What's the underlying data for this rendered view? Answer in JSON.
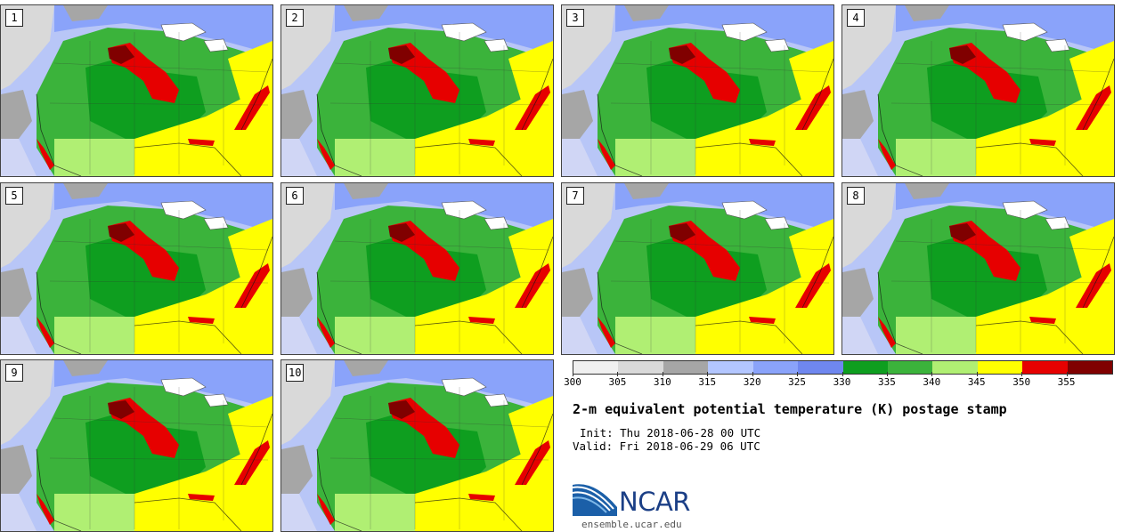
{
  "panels": [
    {
      "label": "1"
    },
    {
      "label": "2"
    },
    {
      "label": "3"
    },
    {
      "label": "4"
    },
    {
      "label": "5"
    },
    {
      "label": "6"
    },
    {
      "label": "7"
    },
    {
      "label": "8"
    },
    {
      "label": "9"
    },
    {
      "label": "10"
    }
  ],
  "colorbar": {
    "ticks": [
      "300",
      "305",
      "310",
      "315",
      "320",
      "325",
      "330",
      "335",
      "340",
      "345",
      "350",
      "355"
    ],
    "colors": [
      "#f0f0f0",
      "#d9d9d9",
      "#a6a6a6",
      "#b3c6ff",
      "#8aa3fa",
      "#6f87ef",
      "#0e9e1f",
      "#3bb33b",
      "#b0ef73",
      "#ffff00",
      "#e60000",
      "#800000"
    ]
  },
  "title": "2-m equivalent potential temperature (K) postage stamp",
  "init": "Init: Thu 2018-06-28 00 UTC",
  "valid": "Valid: Fri 2018-06-29 06 UTC",
  "logo": {
    "name": "NCAR",
    "url": "ensemble.ucar.edu"
  }
}
